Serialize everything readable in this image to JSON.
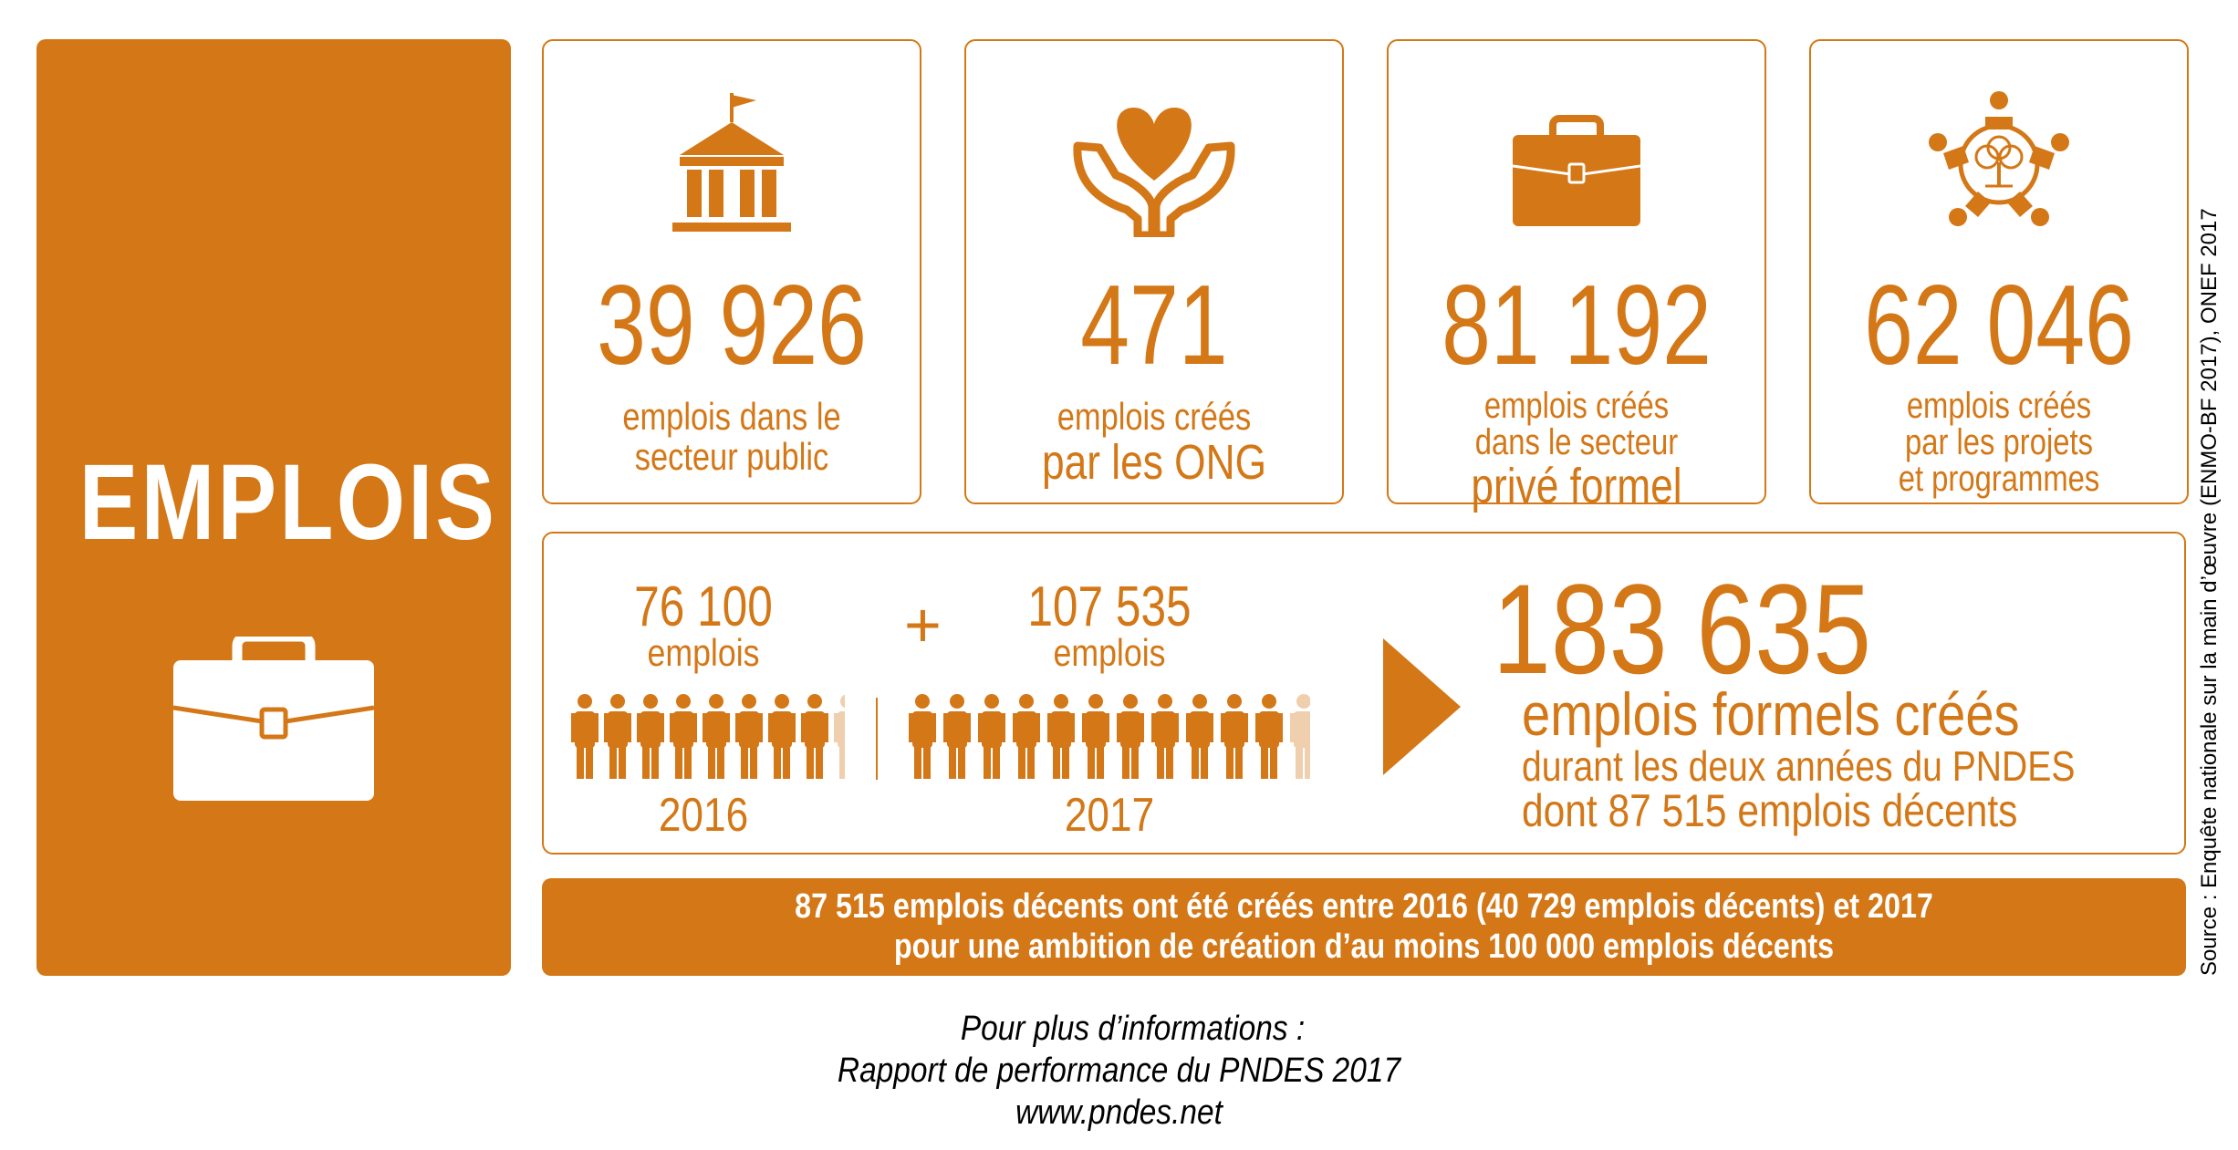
{
  "sidebar": {
    "title": "EMPLOIS",
    "icon": "briefcase-icon"
  },
  "cards": [
    {
      "icon": "building-icon",
      "number": "39 926",
      "lines": [
        "emplois dans le",
        "secteur public"
      ]
    },
    {
      "icon": "heart-hands-icon",
      "number": "471",
      "lines": [
        "emplois créés",
        "par les ONG"
      ]
    },
    {
      "icon": "briefcase-icon",
      "number": "81 192",
      "lines": [
        "emplois créés",
        "dans le secteur",
        "privé formel"
      ]
    },
    {
      "icon": "community-icon",
      "number": "62 046",
      "lines": [
        "emplois créés",
        "par les projets",
        "et programmes"
      ]
    }
  ],
  "years": [
    {
      "number": "76 100",
      "label": "emplois",
      "year": "2016"
    },
    {
      "number": "107 535",
      "label": "emplois",
      "year": "2017"
    }
  ],
  "plus": "+",
  "total": {
    "number": "183 635",
    "line1": "emplois formels créés",
    "line2": "durant les deux années du PNDES",
    "line3": "dont 87 515 emplois décents"
  },
  "banner": {
    "line1": "87 515 emplois décents ont été créés entre 2016 (40 729 emplois décents) et 2017",
    "line2": "pour une ambition de création d’au moins 100 000 emplois décents"
  },
  "footer": {
    "line1": "Pour plus d’informations :",
    "line2": "Rapport de performance du PNDES 2017",
    "line3": "www.pndes.net"
  },
  "source": "Source : Enquête nationale sur la main d’œuvre (ENMO-BF 2017), ONEF 2017",
  "colors": {
    "accent": "#d47716",
    "white": "#ffffff"
  }
}
